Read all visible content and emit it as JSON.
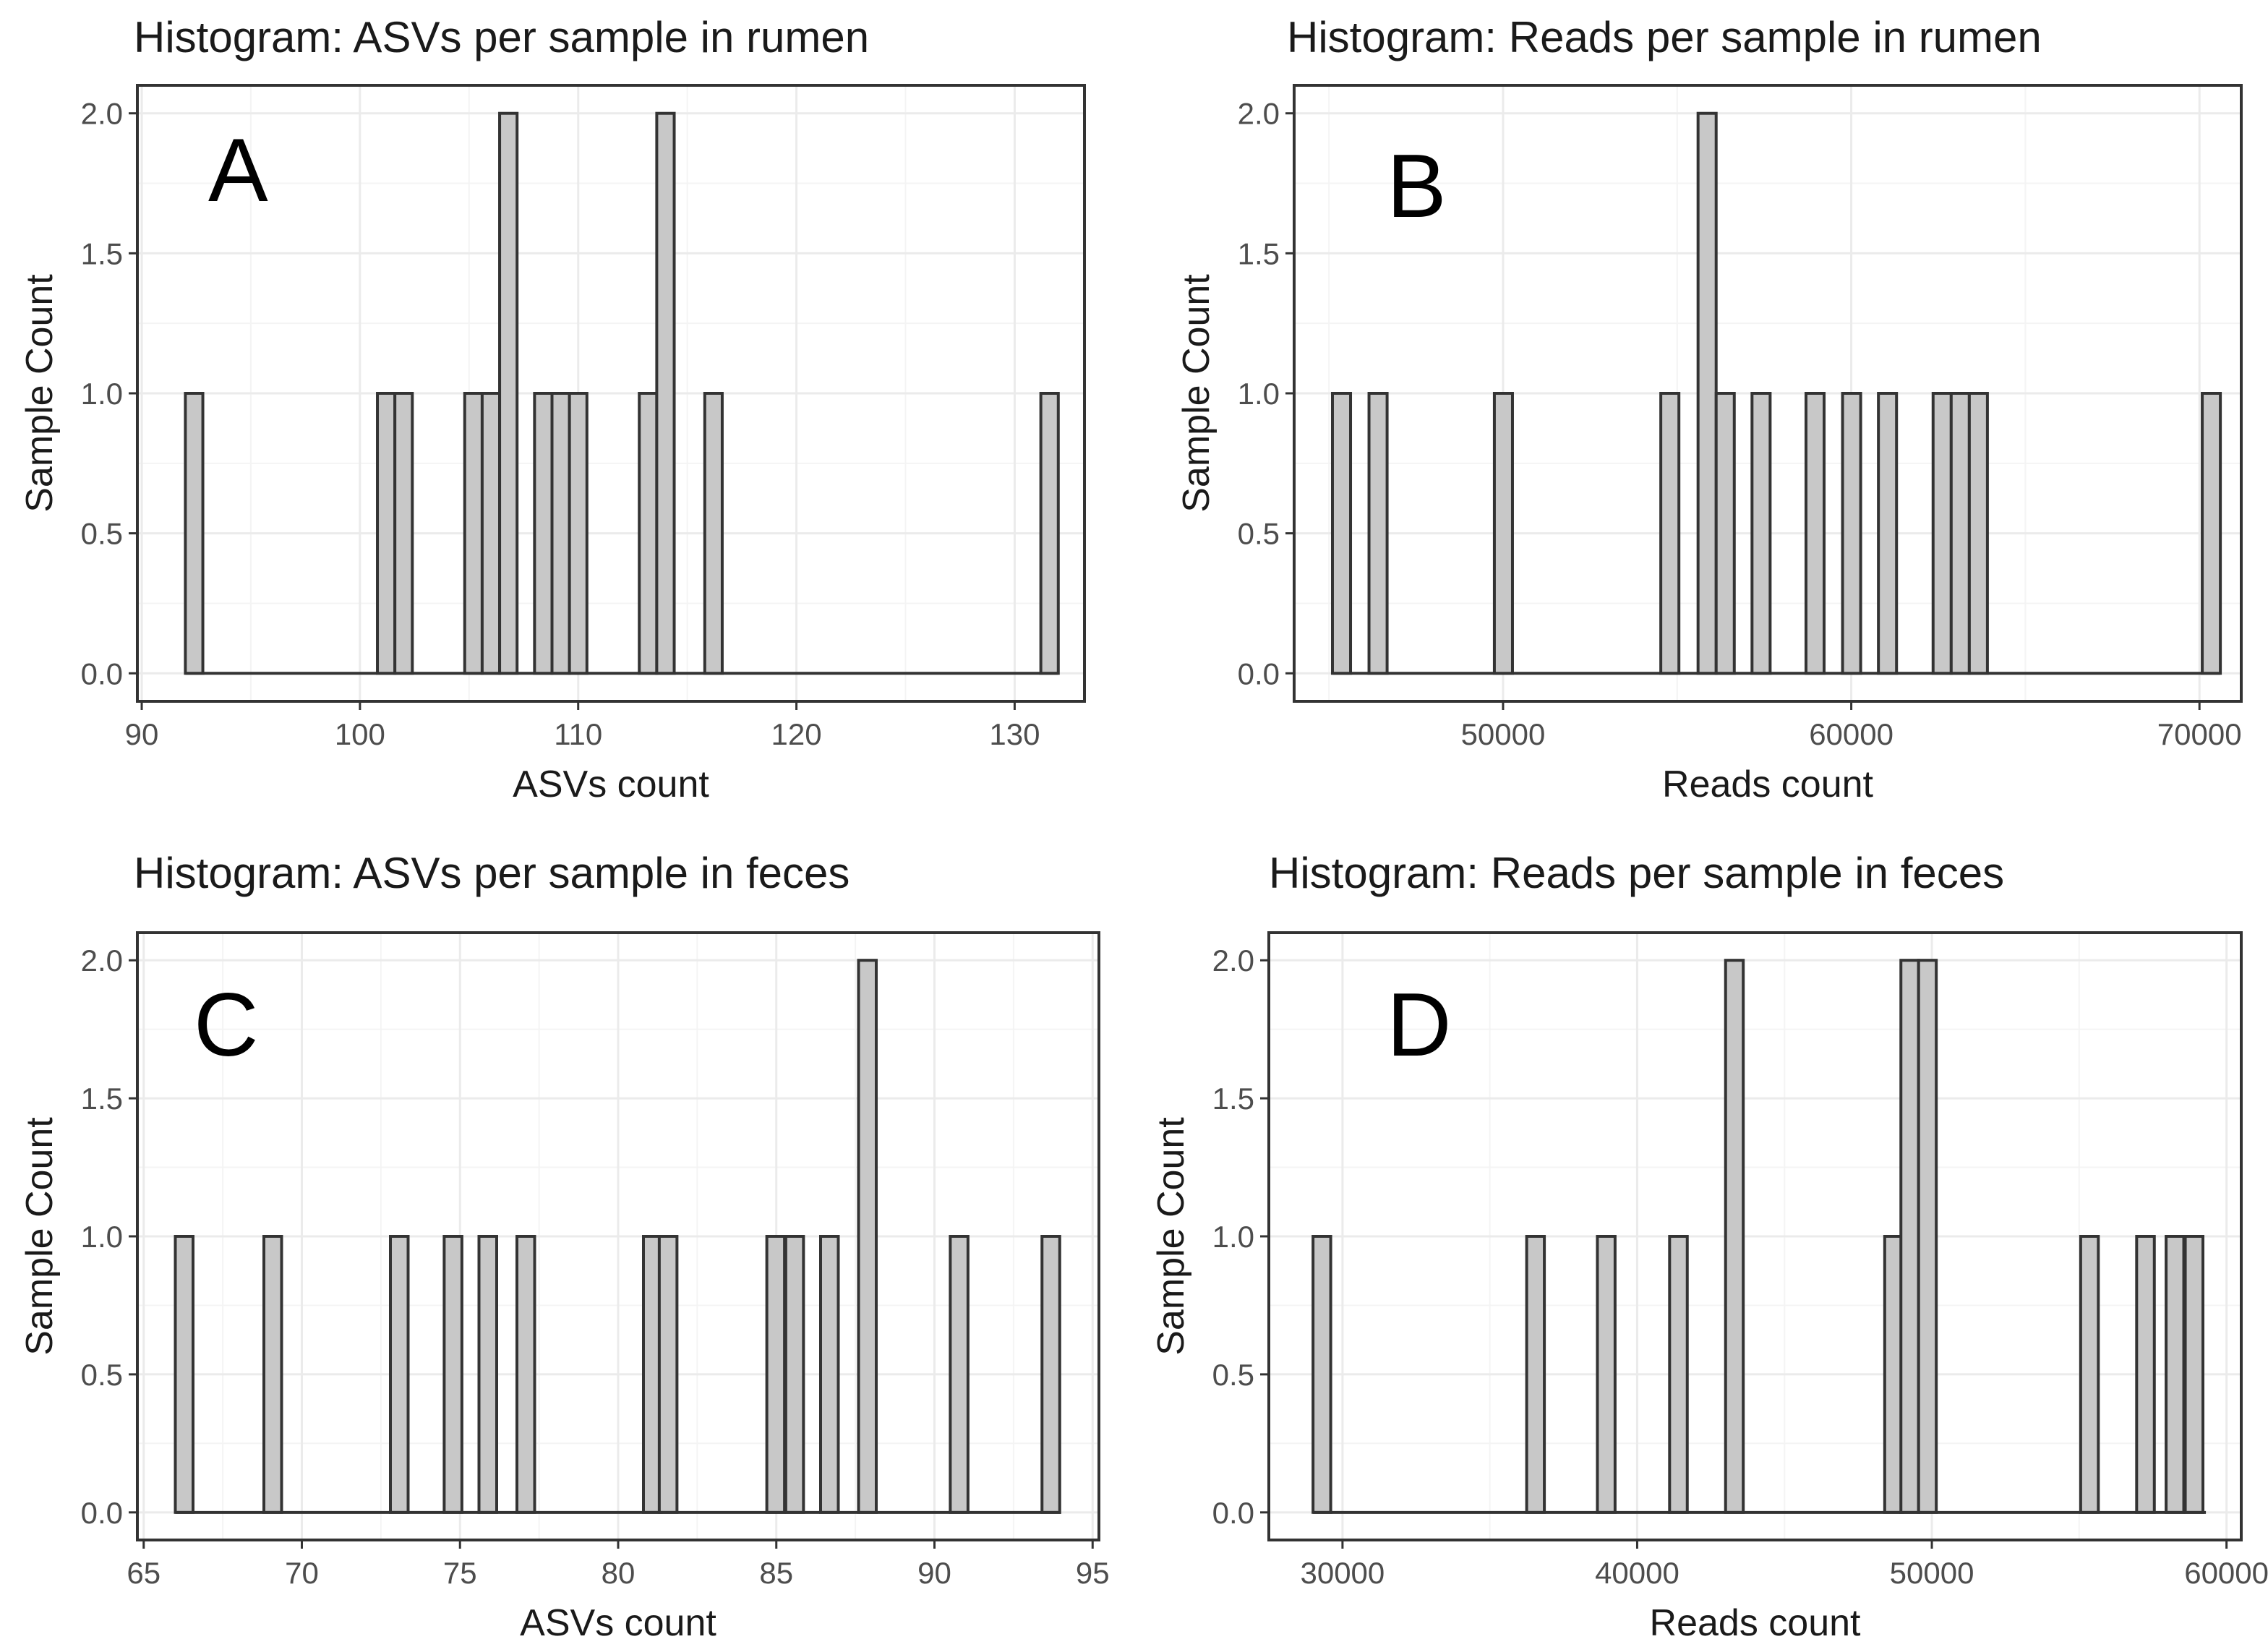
{
  "colors": {
    "bar_fill": "#c8c8c8",
    "bar_stroke": "#333333",
    "grid": "#ebebeb",
    "panel_border": "#333333",
    "background": "#ffffff"
  },
  "chart_data": [
    {
      "panel": "A",
      "type": "bar",
      "title": "Histogram: ASVs per sample in rumen",
      "xlabel": "ASVs count",
      "ylabel": "Sample Count",
      "xlim": [
        89.8,
        133.2
      ],
      "ylim": [
        -0.1,
        2.1
      ],
      "xticks": [
        90,
        100,
        110,
        120,
        130
      ],
      "xtick_labels": [
        "90",
        "100",
        "110",
        "120",
        "130"
      ],
      "yticks": [
        0,
        0.5,
        1,
        1.5,
        2
      ],
      "ytick_labels": [
        "0.0",
        "0.5",
        "1.0",
        "1.5",
        "2.0"
      ],
      "baseline": [
        92,
        132
      ],
      "bin_width": 0.8,
      "bins": [
        {
          "x": 92.0,
          "count": 1
        },
        {
          "x": 100.8,
          "count": 1
        },
        {
          "x": 101.6,
          "count": 1
        },
        {
          "x": 104.8,
          "count": 1
        },
        {
          "x": 105.6,
          "count": 1
        },
        {
          "x": 106.4,
          "count": 2
        },
        {
          "x": 108.0,
          "count": 1
        },
        {
          "x": 108.8,
          "count": 1
        },
        {
          "x": 109.6,
          "count": 1
        },
        {
          "x": 112.8,
          "count": 1
        },
        {
          "x": 113.6,
          "count": 2
        },
        {
          "x": 115.8,
          "count": 1
        },
        {
          "x": 131.2,
          "count": 1
        }
      ]
    },
    {
      "panel": "B",
      "type": "bar",
      "title": "Histogram: Reads per sample in rumen",
      "xlabel": "Reads count",
      "ylabel": "Sample Count",
      "xlim": [
        44000,
        71200
      ],
      "ylim": [
        -0.1,
        2.1
      ],
      "xticks": [
        50000,
        60000,
        70000
      ],
      "xtick_labels": [
        "50000",
        "60000",
        "70000"
      ],
      "yticks": [
        0,
        0.5,
        1,
        1.5,
        2
      ],
      "ytick_labels": [
        "0.0",
        "0.5",
        "1.0",
        "1.5",
        "2.0"
      ],
      "baseline": [
        45100,
        70600
      ],
      "bin_width": 520,
      "bins": [
        {
          "x": 45100,
          "count": 1
        },
        {
          "x": 46150,
          "count": 1
        },
        {
          "x": 49750,
          "count": 1
        },
        {
          "x": 54530,
          "count": 1
        },
        {
          "x": 55600,
          "count": 2
        },
        {
          "x": 56120,
          "count": 1
        },
        {
          "x": 57150,
          "count": 1
        },
        {
          "x": 58700,
          "count": 1
        },
        {
          "x": 59750,
          "count": 1
        },
        {
          "x": 60780,
          "count": 1
        },
        {
          "x": 62350,
          "count": 1
        },
        {
          "x": 62870,
          "count": 1
        },
        {
          "x": 63390,
          "count": 1
        },
        {
          "x": 70080,
          "count": 1
        }
      ]
    },
    {
      "panel": "C",
      "type": "bar",
      "title": "Histogram: ASVs per sample in feces",
      "xlabel": "ASVs count",
      "ylabel": "Sample Count",
      "xlim": [
        64.8,
        95.2
      ],
      "ylim": [
        -0.1,
        2.1
      ],
      "xticks": [
        65,
        70,
        75,
        80,
        85,
        90,
        95
      ],
      "xtick_labels": [
        "65",
        "70",
        "75",
        "80",
        "85",
        "90",
        "95"
      ],
      "yticks": [
        0,
        0.5,
        1,
        1.5,
        2
      ],
      "ytick_labels": [
        "0.0",
        "0.5",
        "1.0",
        "1.5",
        "2.0"
      ],
      "baseline": [
        66,
        94
      ],
      "bin_width": 0.56,
      "bins": [
        {
          "x": 66.0,
          "count": 1
        },
        {
          "x": 68.8,
          "count": 1
        },
        {
          "x": 72.8,
          "count": 1
        },
        {
          "x": 74.5,
          "count": 1
        },
        {
          "x": 75.6,
          "count": 1
        },
        {
          "x": 76.8,
          "count": 1
        },
        {
          "x": 80.8,
          "count": 1
        },
        {
          "x": 81.3,
          "count": 1
        },
        {
          "x": 84.7,
          "count": 1
        },
        {
          "x": 85.3,
          "count": 1
        },
        {
          "x": 86.4,
          "count": 1
        },
        {
          "x": 87.6,
          "count": 2
        },
        {
          "x": 90.5,
          "count": 1
        },
        {
          "x": 93.4,
          "count": 1
        }
      ]
    },
    {
      "panel": "D",
      "type": "bar",
      "title": "Histogram: Reads per sample in feces",
      "xlabel": "Reads count",
      "ylabel": "Sample Count",
      "xlim": [
        27500,
        60500
      ],
      "ylim": [
        -0.1,
        2.1
      ],
      "xticks": [
        30000,
        40000,
        50000,
        60000
      ],
      "xtick_labels": [
        "30000",
        "40000",
        "50000",
        "60000"
      ],
      "yticks": [
        0,
        0.5,
        1,
        1.5,
        2
      ],
      "ytick_labels": [
        "0.0",
        "0.5",
        "1.0",
        "1.5",
        "2.0"
      ],
      "baseline": [
        29000,
        59300
      ],
      "bin_width": 600,
      "bins": [
        {
          "x": 29000,
          "count": 1
        },
        {
          "x": 36250,
          "count": 1
        },
        {
          "x": 38650,
          "count": 1
        },
        {
          "x": 41100,
          "count": 1
        },
        {
          "x": 43000,
          "count": 2
        },
        {
          "x": 48400,
          "count": 1
        },
        {
          "x": 48950,
          "count": 2
        },
        {
          "x": 49550,
          "count": 2
        },
        {
          "x": 55050,
          "count": 1
        },
        {
          "x": 56950,
          "count": 1
        },
        {
          "x": 57950,
          "count": 1
        },
        {
          "x": 58600,
          "count": 1
        }
      ]
    }
  ]
}
